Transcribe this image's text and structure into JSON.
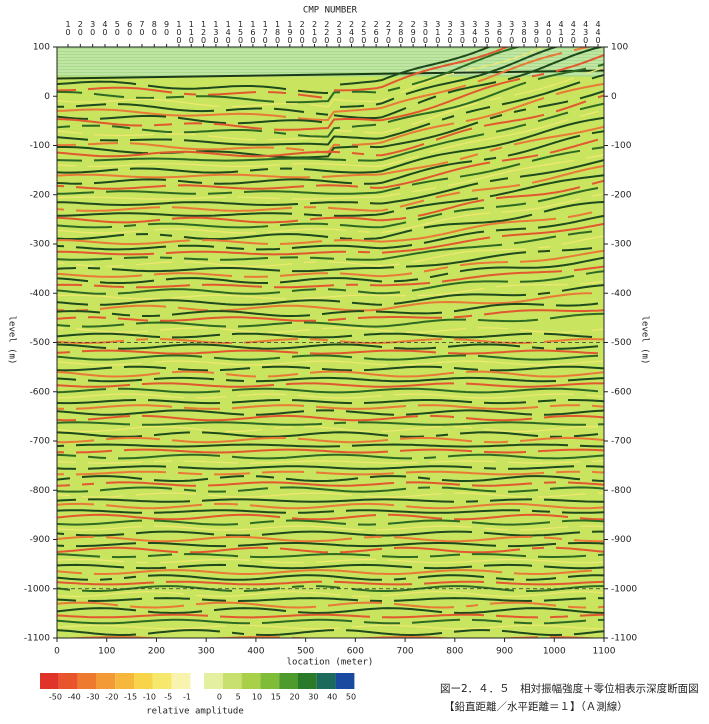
{
  "chart_data": {
    "type": "seismic-section",
    "top_axis_title": "CMP NUMBER",
    "cmp_numbers": [
      10,
      20,
      30,
      40,
      50,
      60,
      70,
      80,
      90,
      100,
      110,
      120,
      130,
      140,
      150,
      160,
      170,
      180,
      190,
      200,
      210,
      220,
      230,
      240,
      250,
      260,
      270,
      280,
      290,
      300,
      310,
      320,
      330,
      340,
      350,
      360,
      370,
      380,
      390,
      400,
      410,
      420,
      430,
      440
    ],
    "xlabel": "location (meter)",
    "ylabel": "level (m)",
    "xlim": [
      0,
      1100
    ],
    "xticks": [
      0,
      100,
      200,
      300,
      400,
      500,
      600,
      700,
      800,
      900,
      1000,
      1100
    ],
    "ylim": [
      -1100,
      100
    ],
    "yticks": [
      100,
      0,
      -100,
      -200,
      -300,
      -400,
      -500,
      -600,
      -700,
      -800,
      -900,
      -1000,
      -1100
    ],
    "dashed_levels": [
      -500,
      -1000
    ],
    "colorbar": {
      "label": "relative amplitude",
      "negative": {
        "ticks": [
          -50,
          -40,
          -30,
          -20,
          -15,
          -10,
          -5,
          -1
        ],
        "colors": [
          "#e0342a",
          "#e8542c",
          "#ee7a30",
          "#f39a36",
          "#f6b83c",
          "#f8d44a",
          "#f6e86a",
          "#f8f4b0"
        ]
      },
      "positive": {
        "ticks": [
          0,
          5,
          10,
          15,
          20,
          30,
          40,
          50
        ],
        "colors": [
          "#e4f0a0",
          "#c8e070",
          "#a8d048",
          "#7fbc38",
          "#4e9a2c",
          "#2a7a2a",
          "#1c6a5c",
          "#1a4aa0"
        ]
      }
    },
    "caption": [
      "図ー2．４．５　相対振幅強度＋零位相表示深度断面図",
      "【鉛直距離／水平距離＝１】（Ａ測線）"
    ]
  }
}
